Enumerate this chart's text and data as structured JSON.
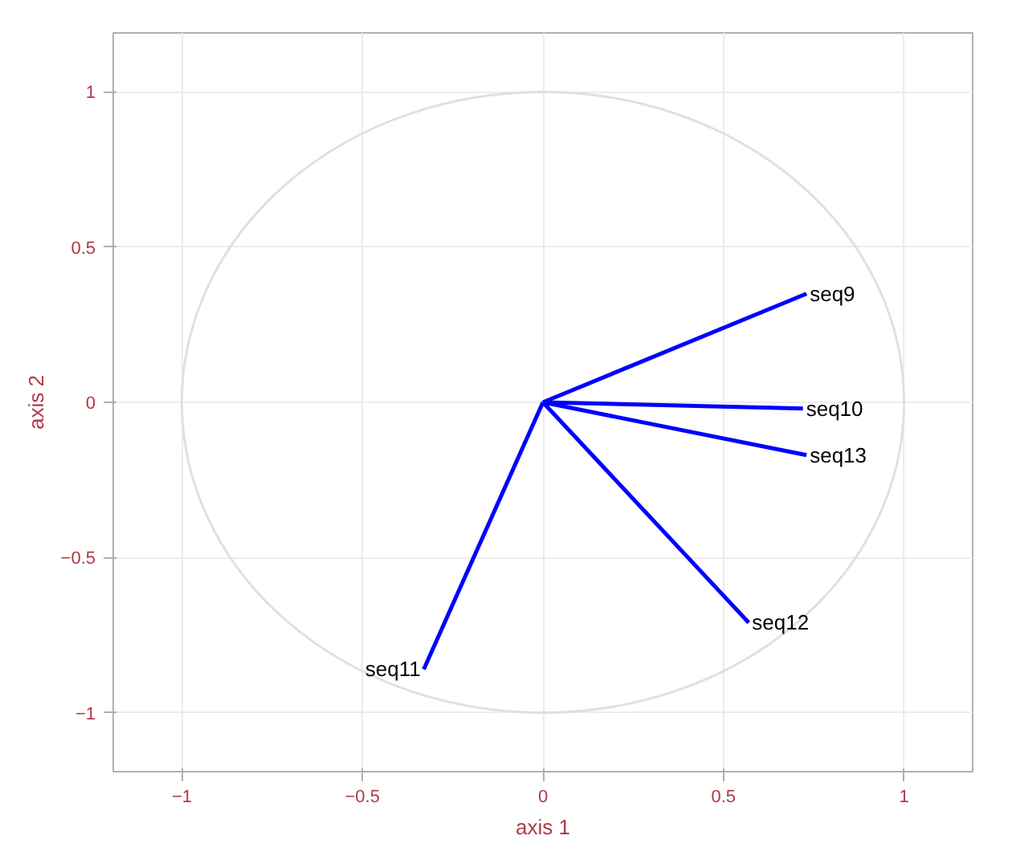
{
  "chart_data": {
    "type": "line",
    "xlabel": "axis 1",
    "ylabel": "axis 2",
    "xlim": [
      -1.19,
      1.19
    ],
    "ylim": [
      -1.19,
      1.19
    ],
    "xticks": [
      -1,
      -0.5,
      0,
      0.5,
      1
    ],
    "yticks": [
      -1,
      -0.5,
      0,
      0.5,
      1
    ],
    "grid": true,
    "marker": "none",
    "line_style": "solid",
    "series": [
      {
        "name": "seq9",
        "color": "#0000ff",
        "x": [
          0,
          0.73
        ],
        "values": [
          0,
          0.35
        ]
      },
      {
        "name": "seq10",
        "color": "#0000ff",
        "x": [
          0,
          0.72
        ],
        "values": [
          0,
          -0.02
        ]
      },
      {
        "name": "seq13",
        "color": "#0000ff",
        "x": [
          0,
          0.73
        ],
        "values": [
          0,
          -0.17
        ]
      },
      {
        "name": "seq12",
        "color": "#0000ff",
        "x": [
          0,
          0.57
        ],
        "values": [
          0,
          -0.71
        ]
      },
      {
        "name": "seq11",
        "color": "#0000ff",
        "x": [
          0,
          -0.33
        ],
        "values": [
          0,
          -0.86
        ]
      }
    ]
  }
}
